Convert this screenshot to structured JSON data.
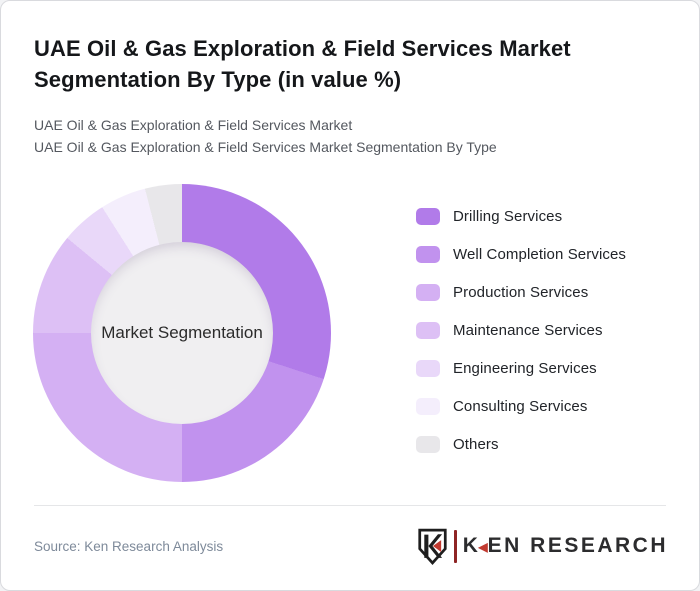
{
  "header": {
    "title": "UAE Oil & Gas Exploration & Field Services Market Segmentation By Type (in value %)",
    "subtitle_line1": "UAE Oil & Gas Exploration & Field Services Market",
    "subtitle_line2": "UAE Oil & Gas Exploration & Field Services Market Segmentation By Type"
  },
  "chart_data": {
    "type": "pie",
    "variant": "donut",
    "title": "UAE Oil & Gas Exploration & Field Services Market Segmentation By Type (in value %)",
    "unit": "value %",
    "center_label": "Market Segmentation",
    "legend_position": "right",
    "start_angle_deg": 0,
    "segments": [
      {
        "label": "Drilling Services",
        "value": 30,
        "color": "#b17be9"
      },
      {
        "label": "Well Completion Services",
        "value": 20,
        "color": "#c192ee"
      },
      {
        "label": "Production Services",
        "value": 25,
        "color": "#d4b0f3"
      },
      {
        "label": "Maintenance Services",
        "value": 11,
        "color": "#ddc0f5"
      },
      {
        "label": "Engineering Services",
        "value": 5,
        "color": "#e9d8f9"
      },
      {
        "label": "Consulting Services",
        "value": 5,
        "color": "#f4eefc"
      },
      {
        "label": "Others",
        "value": 4,
        "color": "#e8e7ea"
      }
    ],
    "hole_color": "#f0eff1"
  },
  "footer": {
    "source": "Source: Ken Research Analysis",
    "logo": {
      "k": "K",
      "rest": "EN RESEARCH",
      "accent_color": "#c13a30",
      "bar_color": "#8e2424"
    }
  }
}
